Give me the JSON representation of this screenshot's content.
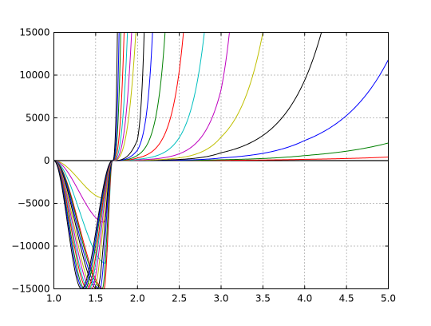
{
  "chart_data": {
    "type": "line",
    "title": "",
    "xlabel": "",
    "ylabel": "",
    "xlim": [
      1.0,
      5.0
    ],
    "ylim": [
      -15000,
      15000
    ],
    "grid": true,
    "grid_style": "dotted",
    "x_ticks": [
      1.0,
      1.5,
      2.0,
      2.5,
      3.0,
      3.5,
      4.0,
      4.5,
      5.0
    ],
    "x_tick_labels": [
      "1.0",
      "1.5",
      "2.0",
      "2.5",
      "3.0",
      "3.5",
      "4.0",
      "4.5",
      "5.0"
    ],
    "y_ticks": [
      -15000,
      -10000,
      -5000,
      0,
      5000,
      10000,
      15000
    ],
    "y_tick_labels": [
      "−15000",
      "−10000",
      "−5000",
      "0",
      "5000",
      "10000",
      "15000"
    ],
    "description": "Family of polynomial-like curves (x-1.7)*x^n for increasing n; all cross zero near x=1.7, negative dip left of 1.7 and growing steeply right of 1.7.",
    "series": [
      {
        "color": "#ff0000",
        "values": [
          [
            1.0,
            -0.7
          ],
          [
            1.6,
            -1.2
          ],
          [
            1.7,
            0
          ],
          [
            2.0,
            2.4
          ],
          [
            3.0,
            34
          ],
          [
            4.0,
            147
          ],
          [
            5.0,
            412
          ]
        ]
      },
      {
        "color": "#008000",
        "values": [
          [
            1.0,
            -0.7
          ],
          [
            1.6,
            -1.8
          ],
          [
            1.7,
            0
          ],
          [
            2.0,
            4.8
          ],
          [
            3.0,
            102
          ],
          [
            4.0,
            589
          ],
          [
            5.0,
            2062
          ]
        ]
      },
      {
        "color": "#0000ff",
        "values": [
          [
            1.0,
            -0.7
          ],
          [
            1.6,
            -3
          ],
          [
            1.7,
            0
          ],
          [
            2.0,
            9.6
          ],
          [
            3.0,
            307
          ],
          [
            4.0,
            2355
          ],
          [
            5.0,
            11800
          ]
        ]
      },
      {
        "color": "#000000",
        "values": [
          [
            1.0,
            -0.7
          ],
          [
            1.6,
            -2
          ],
          [
            1.7,
            0
          ],
          [
            2.0,
            19
          ],
          [
            3.0,
            920
          ],
          [
            4.0,
            9400
          ],
          [
            4.2,
            15000
          ]
        ]
      },
      {
        "color": "#bfbf00",
        "values": [
          [
            1.0,
            -0.7
          ],
          [
            1.6,
            -4400
          ],
          [
            1.7,
            0
          ],
          [
            2.0,
            38
          ],
          [
            3.0,
            2760
          ],
          [
            3.5,
            15000
          ]
        ]
      },
      {
        "color": "#bf00bf",
        "values": [
          [
            1.0,
            -0.7
          ],
          [
            1.6,
            -7200
          ],
          [
            1.7,
            0
          ],
          [
            2.0,
            77
          ],
          [
            3.0,
            8300
          ],
          [
            3.1,
            15000
          ]
        ]
      },
      {
        "color": "#00bfbf",
        "values": [
          [
            1.0,
            -0.7
          ],
          [
            1.62,
            -12000
          ],
          [
            1.7,
            0
          ],
          [
            2.0,
            154
          ],
          [
            2.8,
            15000
          ]
        ]
      },
      {
        "color": "#ff0000",
        "values": [
          [
            1.0,
            -0.7
          ],
          [
            1.6,
            -15000
          ],
          [
            1.7,
            0
          ],
          [
            2.0,
            307
          ],
          [
            2.55,
            15000
          ]
        ]
      },
      {
        "color": "#008000",
        "values": [
          [
            1.0,
            -0.7
          ],
          [
            1.58,
            -15000
          ],
          [
            1.7,
            0
          ],
          [
            2.0,
            615
          ],
          [
            2.33,
            15000
          ]
        ]
      },
      {
        "color": "#0000ff",
        "values": [
          [
            1.0,
            -0.7
          ],
          [
            1.55,
            -15000
          ],
          [
            1.7,
            0
          ],
          [
            2.0,
            1229
          ],
          [
            2.18,
            15000
          ]
        ]
      },
      {
        "color": "#000000",
        "values": [
          [
            1.0,
            -0.7
          ],
          [
            1.52,
            -15000
          ],
          [
            1.7,
            0
          ],
          [
            2.0,
            2458
          ],
          [
            2.08,
            15000
          ]
        ]
      },
      {
        "color": "#bfbf00",
        "values": [
          [
            1.0,
            -0.7
          ],
          [
            1.48,
            -15000
          ],
          [
            1.7,
            0
          ],
          [
            1.98,
            15000
          ]
        ]
      },
      {
        "color": "#bf00bf",
        "values": [
          [
            1.0,
            -0.7
          ],
          [
            1.45,
            -15000
          ],
          [
            1.7,
            0
          ],
          [
            1.93,
            15000
          ]
        ]
      },
      {
        "color": "#00bfbf",
        "values": [
          [
            1.0,
            -0.7
          ],
          [
            1.42,
            -15000
          ],
          [
            1.7,
            0
          ],
          [
            1.88,
            15000
          ]
        ]
      },
      {
        "color": "#ff0000",
        "values": [
          [
            1.0,
            -0.7
          ],
          [
            1.4,
            -15000
          ],
          [
            1.7,
            0
          ],
          [
            1.84,
            15000
          ]
        ]
      },
      {
        "color": "#008000",
        "values": [
          [
            1.0,
            -0.7
          ],
          [
            1.37,
            -15000
          ],
          [
            1.7,
            0
          ],
          [
            1.8,
            15000
          ]
        ]
      },
      {
        "color": "#0000ff",
        "values": [
          [
            1.0,
            -0.7
          ],
          [
            1.35,
            -15000
          ],
          [
            1.7,
            0
          ],
          [
            1.78,
            15000
          ]
        ]
      },
      {
        "color": "#000000",
        "values": [
          [
            1.0,
            -0.7
          ],
          [
            1.33,
            -15000
          ],
          [
            1.7,
            0
          ],
          [
            1.76,
            15000
          ]
        ]
      }
    ]
  }
}
